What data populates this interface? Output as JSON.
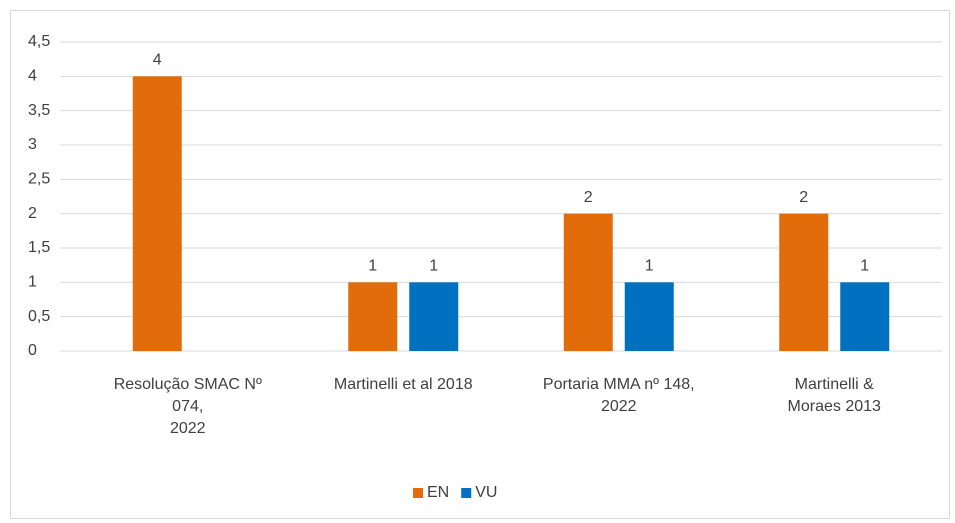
{
  "chart_data": {
    "type": "bar",
    "categories": [
      "Resolução SMAC Nº\n074,\n2022",
      "Martinelli et al 2018",
      "Portaria MMA nº 148,\n2022",
      "Martinelli &\nMoraes 2013"
    ],
    "series": [
      {
        "name": "EN",
        "color": "#e36c0a",
        "values": [
          4,
          1,
          2,
          2
        ]
      },
      {
        "name": "VU",
        "color": "#0070c0",
        "values": [
          null,
          1,
          1,
          1
        ]
      }
    ],
    "ylim": [
      0,
      4.5
    ],
    "yticks": [
      0,
      {
        "value": 0.5,
        "label": "0,5"
      },
      1,
      {
        "value": 1.5,
        "label": "1,5"
      },
      2,
      {
        "value": 2.5,
        "label": "2,5"
      },
      3,
      {
        "value": 3.5,
        "label": "3,5"
      },
      4,
      {
        "value": 4.5,
        "label": "4,5"
      }
    ],
    "grid": true,
    "legend": "bottom"
  }
}
